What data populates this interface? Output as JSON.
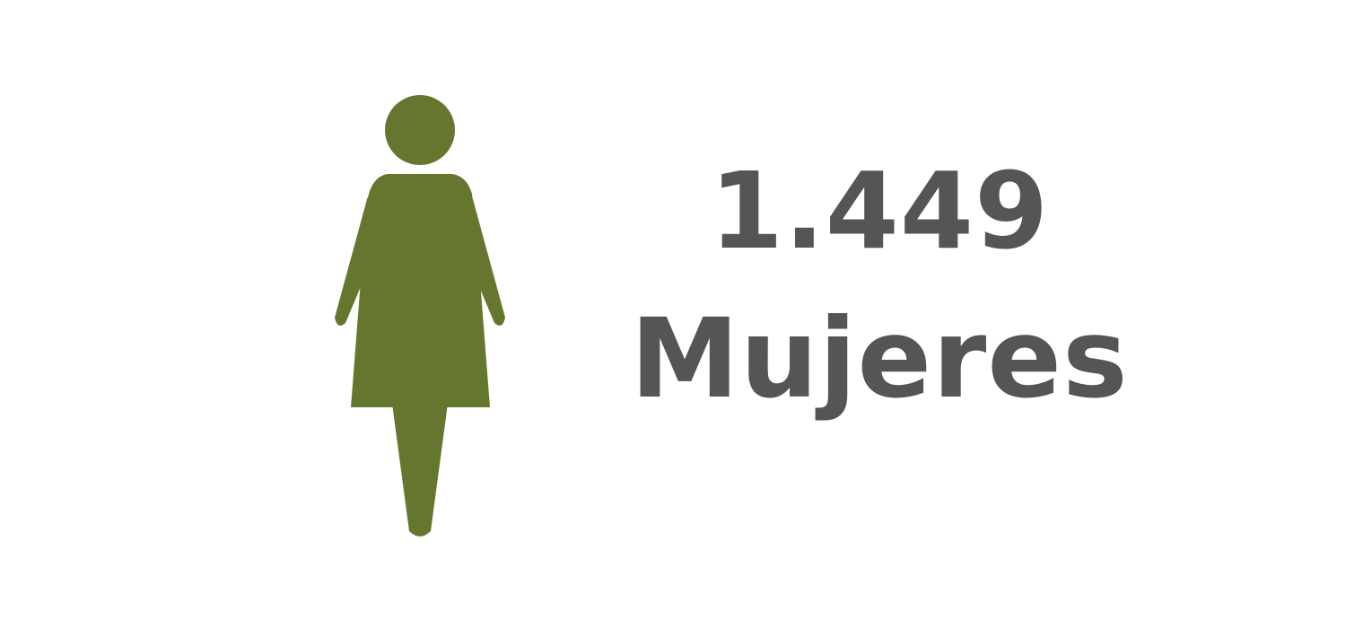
{
  "stat": {
    "value": "1.449",
    "label": "Mujeres"
  },
  "icon": {
    "name": "woman-icon",
    "color": "#65772e"
  },
  "text_color": "#555555"
}
